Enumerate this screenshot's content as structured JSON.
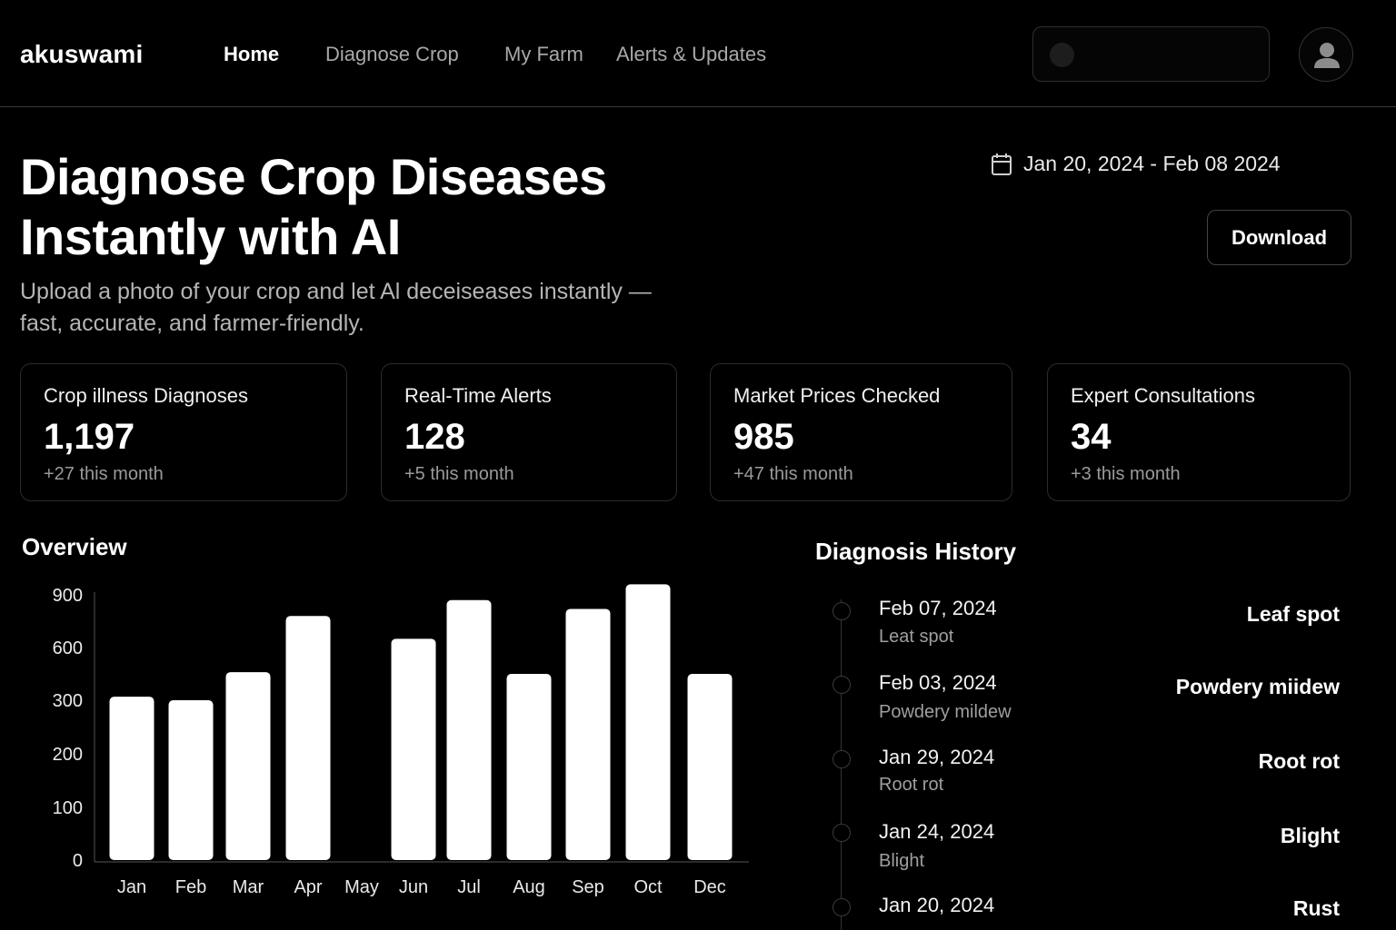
{
  "app": {
    "brand": "akuswami"
  },
  "nav": {
    "items": [
      {
        "label": "Home",
        "active": true
      },
      {
        "label": "Diagnose Crop",
        "active": false
      },
      {
        "label": "My Farm",
        "active": false
      },
      {
        "label": "Alerts & Updates",
        "active": false
      }
    ]
  },
  "search": {
    "placeholder": ""
  },
  "hero": {
    "title_line1": "Diagnose Crop Diseases",
    "title_line2": "Instantly with AI",
    "subtitle_line1": "Upload a photo of your crop and let Al deceiseases instantly —",
    "subtitle_line2": "fast, accurate, and farmer-friendly."
  },
  "toolbar": {
    "date_range": "Jan 20, 2024 - Feb 08 2024",
    "download_label": "Download"
  },
  "stats": [
    {
      "label": "Crop illness Diagnoses",
      "value": "1,197",
      "delta": "+27 this month"
    },
    {
      "label": "Real-Time Alerts",
      "value": "128",
      "delta": "+5 this month"
    },
    {
      "label": "Market Prices Checked",
      "value": "985",
      "delta": "+47 this month"
    },
    {
      "label": "Expert Consultations",
      "value": "34",
      "delta": "+3 this month"
    }
  ],
  "overview": {
    "title": "Overview"
  },
  "chart_data": {
    "type": "bar",
    "title": "",
    "xlabel": "",
    "ylabel": "",
    "y_ticks": [
      "0",
      "100",
      "200",
      "300",
      "600",
      "900"
    ],
    "y_tick_values": [
      0,
      100,
      200,
      300,
      600,
      900
    ],
    "categories": [
      "Jan",
      "Feb",
      "Mar",
      "Apr",
      "May",
      "Jun",
      "Jul",
      "Aug",
      "Sep",
      "Oct",
      "Dec"
    ],
    "values": [
      320,
      300,
      460,
      780,
      null,
      650,
      870,
      450,
      820,
      960,
      450
    ],
    "grid": false,
    "legend": "none",
    "bar_color": "#ffffff"
  },
  "history": {
    "title": "Diagnosis History",
    "entries": [
      {
        "date": "Feb 07, 2024",
        "sub": "Leat spot",
        "tag": "Leaf spot"
      },
      {
        "date": "Feb 03, 2024",
        "sub": "Powdery mildew",
        "tag": "Powdery miidew"
      },
      {
        "date": "Jan 29, 2024",
        "sub": "Root rot",
        "tag": "Root rot"
      },
      {
        "date": "Jan 24, 2024",
        "sub": "Blight",
        "tag": "Blight"
      },
      {
        "date": "Jan 20, 2024",
        "sub": "",
        "tag": "Rust"
      }
    ]
  },
  "colors": {
    "background": "#000000",
    "text": "#ffffff",
    "muted": "#9a9a9a",
    "border": "#2c2c2c"
  },
  "icons": {
    "calendar": "calendar-icon",
    "user": "user-avatar-icon",
    "search": "search-icon"
  }
}
